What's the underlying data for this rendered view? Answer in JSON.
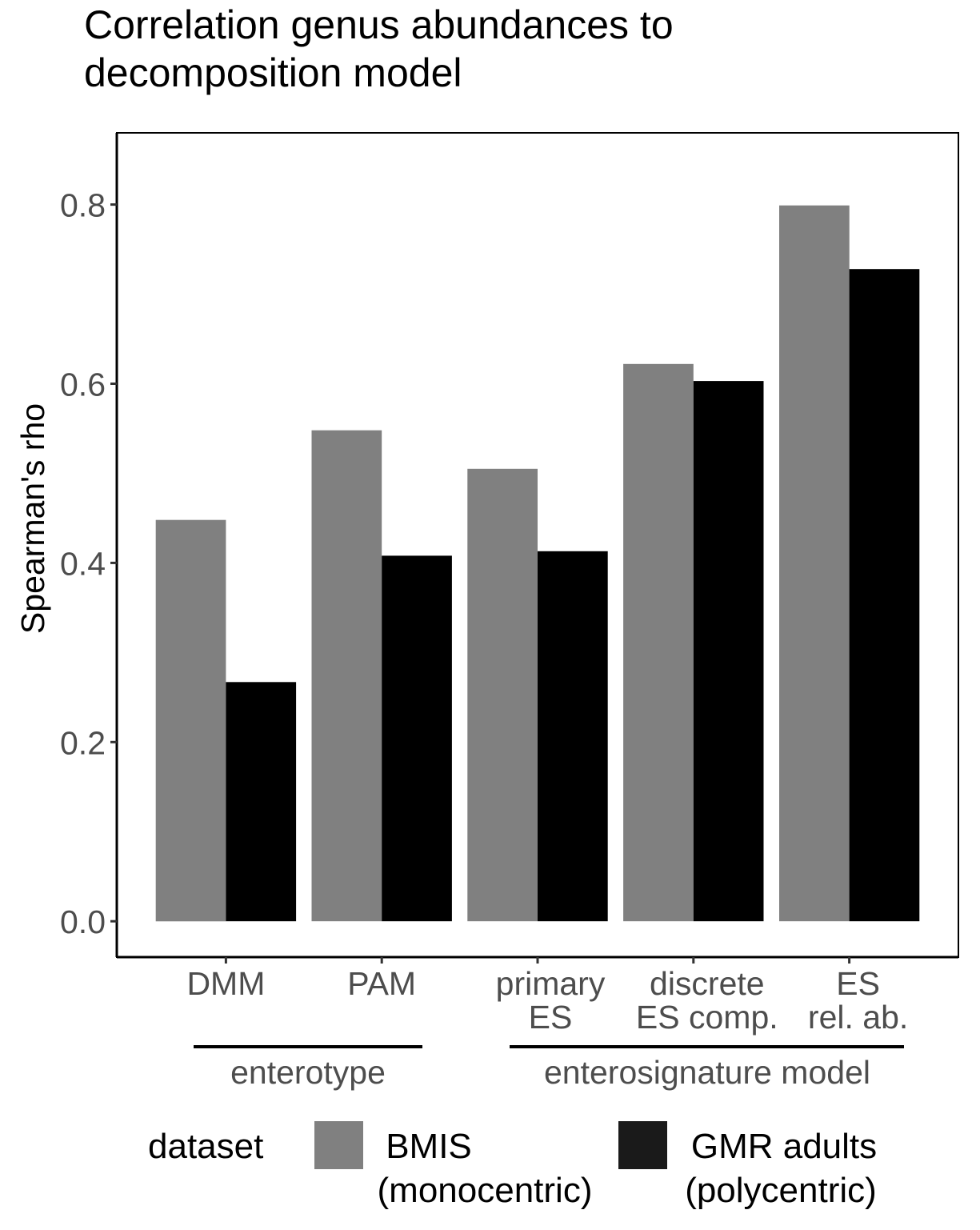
{
  "chart_data": {
    "type": "bar",
    "title": "Correlation genus abundances to decomposition model",
    "title_lines": [
      "Correlation genus abundances to",
      "decomposition model"
    ],
    "ylabel": "Spearman's rho",
    "xlabel": "",
    "ylim": [
      -0.04,
      0.88
    ],
    "yticks": [
      "0.0",
      "0.2",
      "0.4",
      "0.6",
      "0.8"
    ],
    "ytick_values": [
      0.0,
      0.2,
      0.4,
      0.6,
      0.8
    ],
    "categories": [
      "DMM",
      "PAM",
      "primary ES",
      "discrete ES comp.",
      "ES rel. ab."
    ],
    "category_label_lines": [
      [
        "DMM"
      ],
      [
        "PAM"
      ],
      [
        "primary",
        "ES"
      ],
      [
        "discrete",
        "ES comp."
      ],
      [
        "ES",
        "rel. ab."
      ]
    ],
    "series": [
      {
        "name": "BMIS (monocentric)",
        "name_lines": [
          "BMIS",
          "(monocentric)"
        ],
        "color": "#808080",
        "values": [
          0.448,
          0.548,
          0.505,
          0.622,
          0.799
        ]
      },
      {
        "name": "GMR adults (polycentric)",
        "name_lines": [
          "GMR adults",
          "(polycentric)"
        ],
        "color": "#000000",
        "values": [
          0.267,
          0.408,
          0.413,
          0.603,
          0.728
        ]
      }
    ],
    "groups": [
      {
        "label": "enterotype",
        "categories": [
          "DMM",
          "PAM"
        ]
      },
      {
        "label": "enterosignature model",
        "categories": [
          "primary ES",
          "discrete ES comp.",
          "ES rel. ab."
        ]
      }
    ],
    "legend_title": "dataset",
    "legend_position": "bottom",
    "grid": false
  }
}
